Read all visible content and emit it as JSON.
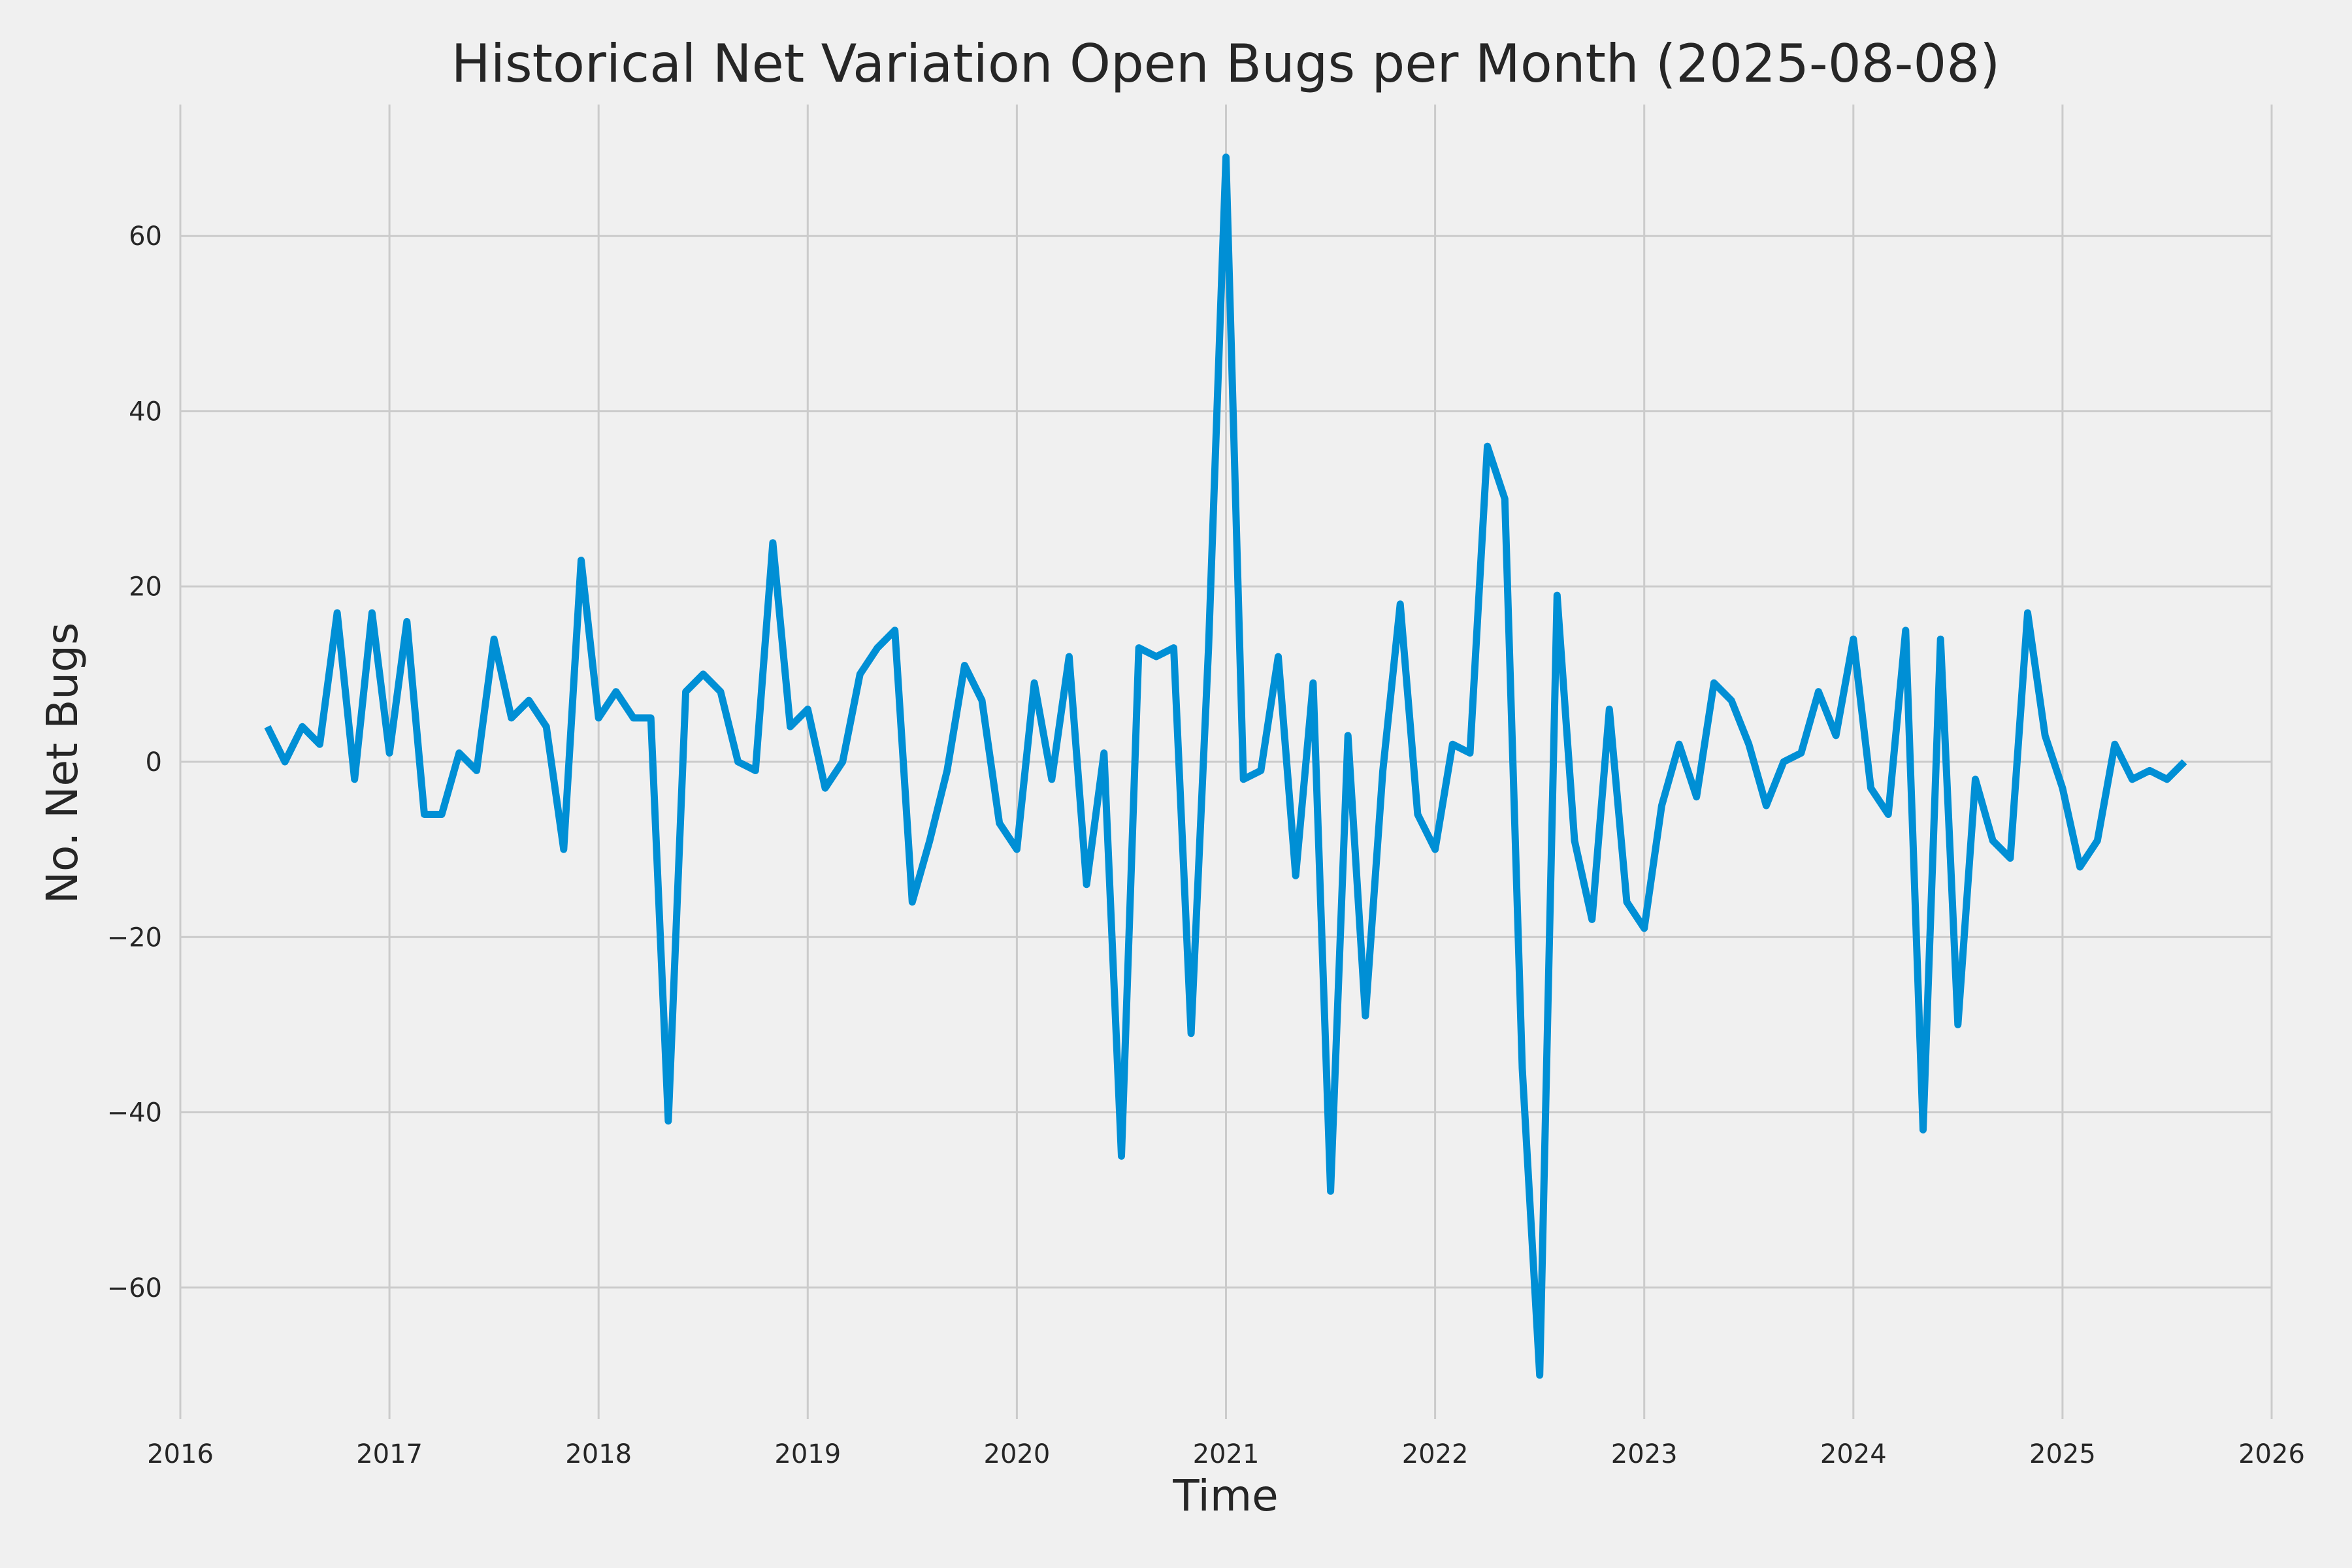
{
  "colors": {
    "background": "#f0f0f0",
    "grid": "#cbcbcb",
    "series": "#008fd5",
    "text": "#262626"
  },
  "chart_data": {
    "type": "line",
    "title": "Historical Net Variation Open Bugs per Month (2025-08-08)",
    "xlabel": "Time",
    "ylabel": "No. Net Bugs",
    "grid": true,
    "xlim": [
      "2016-01-01",
      "2026-01-01"
    ],
    "ylim": [
      -75,
      75
    ],
    "x_ticks": [
      "2016",
      "2017",
      "2018",
      "2019",
      "2020",
      "2021",
      "2022",
      "2023",
      "2024",
      "2025",
      "2026"
    ],
    "y_ticks": [
      60,
      40,
      20,
      0,
      -20,
      -40,
      -60
    ],
    "y_tick_labels": [
      "60",
      "40",
      "20",
      "0",
      "−20",
      "−40",
      "−60"
    ],
    "series": [
      {
        "x": [
          "2016-06",
          "2016-07",
          "2016-08",
          "2016-09",
          "2016-10",
          "2016-11",
          "2016-12",
          "2017-01",
          "2017-02",
          "2017-03",
          "2017-04",
          "2017-05",
          "2017-06",
          "2017-07",
          "2017-08",
          "2017-09",
          "2017-10",
          "2017-11",
          "2017-12",
          "2018-01",
          "2018-02",
          "2018-03",
          "2018-04",
          "2018-05",
          "2018-06",
          "2018-07",
          "2018-08",
          "2018-09",
          "2018-10",
          "2018-11",
          "2018-12",
          "2019-01",
          "2019-02",
          "2019-03",
          "2019-04",
          "2019-05",
          "2019-06",
          "2019-07",
          "2019-08",
          "2019-09",
          "2019-10",
          "2019-11",
          "2019-12",
          "2020-01",
          "2020-02",
          "2020-03",
          "2020-04",
          "2020-05",
          "2020-06",
          "2020-07",
          "2020-08",
          "2020-09",
          "2020-10",
          "2020-11",
          "2020-12",
          "2021-01",
          "2021-02",
          "2021-03",
          "2021-04",
          "2021-05",
          "2021-06",
          "2021-07",
          "2021-08",
          "2021-09",
          "2021-10",
          "2021-11",
          "2021-12",
          "2022-01",
          "2022-02",
          "2022-03",
          "2022-04",
          "2022-05",
          "2022-06",
          "2022-07",
          "2022-08",
          "2022-09",
          "2022-10",
          "2022-11",
          "2022-12",
          "2023-01",
          "2023-02",
          "2023-03",
          "2023-04",
          "2023-05",
          "2023-06",
          "2023-07",
          "2023-08",
          "2023-09",
          "2023-10",
          "2023-11",
          "2023-12",
          "2024-01",
          "2024-02",
          "2024-03",
          "2024-04",
          "2024-05",
          "2024-06",
          "2024-07",
          "2024-08",
          "2024-09",
          "2024-10",
          "2024-11",
          "2024-12",
          "2025-01",
          "2025-02",
          "2025-03",
          "2025-04",
          "2025-05",
          "2025-06",
          "2025-07",
          "2025-08"
        ],
        "y": [
          4,
          0,
          4,
          2,
          17,
          -2,
          17,
          1,
          16,
          -6,
          -6,
          1,
          -1,
          14,
          5,
          7,
          4,
          -10,
          23,
          5,
          8,
          5,
          5,
          -41,
          8,
          10,
          8,
          0,
          -1,
          25,
          4,
          6,
          -3,
          0,
          10,
          13,
          15,
          -16,
          -9,
          -1,
          11,
          7,
          -7,
          -10,
          9,
          -2,
          12,
          -14,
          1,
          -45,
          13,
          12,
          13,
          -31,
          13,
          69,
          -2,
          -1,
          12,
          -13,
          9,
          -49,
          3,
          -29,
          -1,
          18,
          -6,
          -10,
          2,
          1,
          36,
          30,
          -35,
          -70,
          19,
          -9,
          -18,
          6,
          -16,
          -19,
          -5,
          2,
          -4,
          9,
          7,
          2,
          -5,
          0,
          1,
          8,
          3,
          14,
          -3,
          -6,
          15,
          -42,
          14,
          -30,
          -2,
          -9,
          -11,
          17,
          3,
          -3,
          -12,
          -9,
          2,
          -2,
          -1,
          -2,
          0
        ]
      }
    ]
  }
}
